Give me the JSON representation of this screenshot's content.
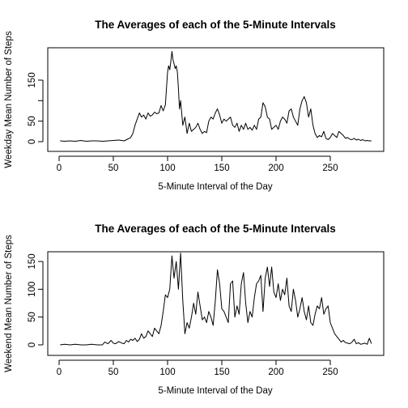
{
  "chart_data": [
    {
      "type": "line",
      "title": "The Averages of each of the 5-Minute Intervals",
      "xlabel": "5-Minute Interval of the Day",
      "ylabel": "Weekday Mean Number of Steps",
      "xlim": [
        0,
        288
      ],
      "ylim": [
        0,
        230
      ],
      "xticks": [
        0,
        50,
        100,
        150,
        200,
        250
      ],
      "yticks": [
        0,
        50,
        100,
        150
      ],
      "ytick_labels": [
        "0",
        "50",
        "",
        "150"
      ],
      "series": [
        {
          "x": [
            1,
            5,
            10,
            15,
            20,
            25,
            30,
            35,
            40,
            45,
            50,
            55,
            60,
            63,
            66,
            68,
            70,
            72,
            74,
            76,
            78,
            80,
            82,
            84,
            86,
            88,
            90,
            92,
            94,
            96,
            98,
            100,
            101,
            102,
            103,
            104,
            105,
            106,
            107,
            108,
            109,
            110,
            111,
            112,
            114,
            116,
            118,
            120,
            122,
            124,
            126,
            128,
            130,
            132,
            134,
            136,
            138,
            140,
            142,
            144,
            146,
            148,
            150,
            152,
            154,
            156,
            158,
            160,
            162,
            164,
            166,
            168,
            170,
            172,
            174,
            176,
            178,
            180,
            182,
            184,
            186,
            188,
            190,
            192,
            194,
            196,
            198,
            200,
            202,
            204,
            206,
            208,
            210,
            212,
            214,
            216,
            218,
            220,
            222,
            224,
            226,
            228,
            230,
            232,
            234,
            236,
            238,
            240,
            242,
            244,
            246,
            248,
            250,
            252,
            254,
            256,
            258,
            260,
            262,
            264,
            266,
            268,
            270,
            272,
            274,
            276,
            278,
            280,
            282,
            284,
            286,
            288
          ],
          "y": [
            2,
            1,
            2,
            1,
            3,
            1,
            2,
            2,
            1,
            2,
            3,
            4,
            2,
            6,
            10,
            20,
            40,
            55,
            70,
            60,
            65,
            55,
            70,
            62,
            65,
            72,
            68,
            70,
            88,
            75,
            90,
            170,
            185,
            175,
            195,
            220,
            200,
            190,
            178,
            185,
            170,
            130,
            80,
            100,
            40,
            60,
            20,
            45,
            25,
            30,
            35,
            45,
            30,
            20,
            25,
            22,
            50,
            60,
            55,
            70,
            80,
            65,
            45,
            55,
            50,
            55,
            60,
            40,
            35,
            45,
            25,
            40,
            30,
            45,
            30,
            35,
            28,
            40,
            30,
            55,
            60,
            95,
            85,
            60,
            55,
            30,
            35,
            40,
            30,
            50,
            60,
            55,
            45,
            75,
            80,
            60,
            50,
            40,
            80,
            100,
            110,
            95,
            60,
            80,
            40,
            20,
            10,
            15,
            12,
            25,
            8,
            5,
            10,
            20,
            15,
            10,
            25,
            20,
            15,
            8,
            10,
            6,
            5,
            8,
            4,
            6,
            3,
            5,
            2,
            3,
            2,
            2
          ]
        }
      ]
    },
    {
      "type": "line",
      "title": "The Averages of each of the 5-Minute Intervals",
      "xlabel": "5-Minute Interval of the Day",
      "ylabel": "Weekend Mean Number of Steps",
      "xlim": [
        0,
        288
      ],
      "ylim": [
        0,
        170
      ],
      "xticks": [
        0,
        50,
        100,
        150,
        200,
        250
      ],
      "yticks": [
        0,
        50,
        100,
        150
      ],
      "ytick_labels": [
        "0",
        "50",
        "100",
        "150"
      ],
      "series": [
        {
          "x": [
            1,
            5,
            10,
            15,
            20,
            25,
            30,
            35,
            40,
            42,
            45,
            48,
            50,
            52,
            55,
            58,
            60,
            62,
            64,
            66,
            68,
            70,
            72,
            74,
            76,
            78,
            80,
            82,
            84,
            86,
            88,
            90,
            92,
            94,
            96,
            98,
            100,
            102,
            104,
            106,
            108,
            110,
            112,
            114,
            116,
            118,
            120,
            122,
            124,
            126,
            128,
            130,
            132,
            134,
            136,
            138,
            140,
            142,
            144,
            146,
            148,
            150,
            152,
            154,
            156,
            158,
            160,
            162,
            164,
            166,
            168,
            170,
            172,
            174,
            176,
            178,
            180,
            182,
            184,
            186,
            188,
            190,
            192,
            194,
            196,
            198,
            200,
            202,
            204,
            206,
            208,
            210,
            212,
            214,
            216,
            218,
            220,
            222,
            224,
            226,
            228,
            230,
            232,
            234,
            236,
            238,
            240,
            242,
            244,
            246,
            248,
            250,
            252,
            254,
            256,
            258,
            260,
            262,
            264,
            266,
            268,
            270,
            272,
            274,
            276,
            278,
            280,
            282,
            284,
            286,
            288
          ],
          "y": [
            0,
            1,
            0,
            1,
            0,
            0,
            1,
            0,
            0,
            5,
            2,
            8,
            3,
            2,
            6,
            3,
            2,
            8,
            5,
            10,
            8,
            12,
            6,
            10,
            20,
            12,
            15,
            25,
            20,
            15,
            30,
            25,
            20,
            35,
            60,
            90,
            85,
            100,
            160,
            120,
            150,
            100,
            165,
            80,
            20,
            40,
            30,
            50,
            75,
            55,
            95,
            70,
            45,
            50,
            40,
            60,
            50,
            35,
            80,
            135,
            110,
            65,
            60,
            50,
            40,
            110,
            115,
            50,
            70,
            55,
            110,
            130,
            75,
            40,
            60,
            50,
            85,
            110,
            115,
            125,
            60,
            120,
            140,
            105,
            140,
            95,
            85,
            110,
            80,
            100,
            90,
            120,
            70,
            60,
            100,
            80,
            50,
            65,
            85,
            60,
            45,
            70,
            40,
            35,
            55,
            70,
            65,
            85,
            55,
            65,
            70,
            40,
            30,
            20,
            15,
            10,
            5,
            8,
            4,
            3,
            2,
            5,
            10,
            2,
            4,
            1,
            2,
            3,
            1,
            12,
            2
          ]
        }
      ]
    }
  ]
}
